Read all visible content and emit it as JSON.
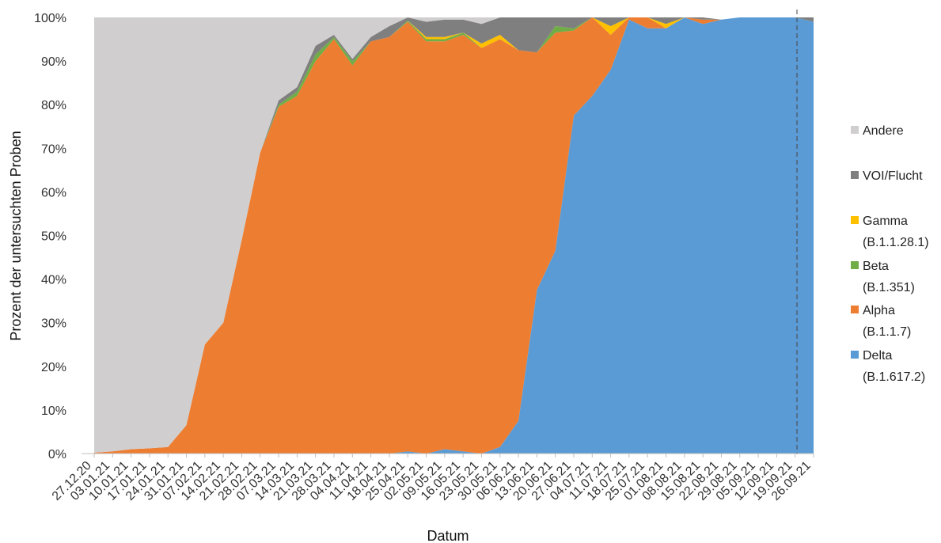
{
  "chart_data": {
    "type": "area",
    "stacked": true,
    "percent": true,
    "xlabel": "Datum",
    "ylabel": "Prozent der untersuchten Proben",
    "ylim": [
      0,
      100
    ],
    "y_ticks": [
      "0%",
      "10%",
      "20%",
      "30%",
      "40%",
      "50%",
      "60%",
      "70%",
      "80%",
      "90%",
      "100%"
    ],
    "grid": false,
    "legend_position": "right",
    "categories": [
      "27.12.20",
      "03.01.21",
      "10.01.21",
      "17.01.21",
      "24.01.21",
      "31.01.21",
      "07.02.21",
      "14.02.21",
      "21.02.21",
      "28.02.21",
      "07.03.21",
      "14.03.21",
      "21.03.21",
      "28.03.21",
      "04.04.21",
      "11.04.21",
      "18.04.21",
      "25.04.21",
      "02.05.21",
      "09.05.21",
      "16.05.21",
      "23.05.21",
      "30.05.21",
      "06.06.21",
      "13.06.21",
      "20.06.21",
      "27.06.21",
      "04.07.21",
      "11.07.21",
      "18.07.21",
      "25.07.21",
      "01.08.21",
      "08.08.21",
      "15.08.21",
      "22.08.21",
      "29.08.21",
      "05.09.21",
      "12.09.21",
      "19.09.21",
      "26.09.21"
    ],
    "reference_line_after": "19.09.21",
    "series": [
      {
        "name": "Delta (B.1.617.2)",
        "color": "#5B9BD5",
        "values": [
          0,
          0,
          0,
          0,
          0,
          0,
          0,
          0,
          0,
          0,
          0,
          0,
          0,
          0,
          0,
          0,
          0,
          0.5,
          0,
          1,
          0.5,
          0,
          1.5,
          7.5,
          37.5,
          46.5,
          77.5,
          82,
          88,
          99.5,
          97.5,
          97.5,
          100,
          98.5,
          99.5,
          100,
          100,
          100,
          100,
          99
        ]
      },
      {
        "name": "Alpha (B.1.1.7)",
        "color": "#ED7D31",
        "values": [
          0.2,
          0.5,
          1,
          1.2,
          1.5,
          6.5,
          25,
          30,
          49,
          69,
          79.5,
          82,
          90,
          95,
          89,
          94.5,
          95.5,
          98.5,
          94.5,
          93.5,
          95.5,
          93,
          93.5,
          85,
          54.5,
          50,
          19.5,
          18,
          8,
          0.5,
          2.5,
          0,
          0,
          1,
          0,
          0,
          0,
          0,
          0,
          0
        ]
      },
      {
        "name": "Beta (B.1.351)",
        "color": "#70AD47",
        "values": [
          0,
          0,
          0,
          0,
          0,
          0,
          0,
          0,
          0,
          0,
          0.5,
          1,
          1.5,
          0.5,
          1,
          0,
          0,
          0.3,
          0.5,
          0.5,
          0.5,
          0,
          0,
          0,
          0,
          1.5,
          0.5,
          0,
          0,
          0,
          0,
          0,
          0,
          0,
          0,
          0,
          0,
          0,
          0,
          0
        ]
      },
      {
        "name": "Gamma (B.1.1.28.1)",
        "color": "#FFC000",
        "values": [
          0,
          0,
          0,
          0,
          0,
          0,
          0,
          0,
          0,
          0,
          0,
          0,
          0,
          0,
          0,
          0,
          0,
          0,
          0.5,
          0.5,
          0,
          1,
          1,
          0,
          0,
          0,
          0,
          0,
          2,
          0,
          0,
          1,
          0,
          0,
          0,
          0,
          0,
          0,
          0,
          0
        ]
      },
      {
        "name": "VOI/Flucht",
        "color": "#7F7F7F",
        "values": [
          0,
          0,
          0,
          0,
          0,
          0,
          0,
          0,
          0,
          0,
          1,
          1,
          2,
          0.5,
          0.5,
          1,
          2.5,
          0.7,
          3.5,
          4,
          3,
          4.5,
          4,
          7.5,
          8,
          2,
          2.5,
          0,
          2,
          0,
          0,
          1.5,
          0,
          0.5,
          0,
          0,
          0,
          0,
          0,
          1
        ]
      },
      {
        "name": "Andere",
        "color": "#D0CECE",
        "values": [
          99.8,
          99.5,
          99,
          98.8,
          98.5,
          93.5,
          75,
          70,
          51,
          31,
          19,
          16,
          6.5,
          4,
          9.5,
          4.5,
          2,
          0,
          1,
          0.5,
          0.5,
          1.5,
          0,
          0,
          0,
          0,
          0,
          0,
          0,
          0,
          0,
          0,
          0,
          0,
          0,
          0,
          0,
          0,
          0,
          0
        ]
      }
    ]
  },
  "legend": [
    {
      "label": "Andere",
      "color": "#D0CECE"
    },
    {
      "label": "VOI/Flucht",
      "color": "#7F7F7F"
    },
    {
      "label": "Gamma",
      "sublabel": "(B.1.1.28.1)",
      "color": "#FFC000"
    },
    {
      "label": "Beta",
      "sublabel": "(B.1.351)",
      "color": "#70AD47"
    },
    {
      "label": "Alpha",
      "sublabel": "(B.1.1.7)",
      "color": "#ED7D31"
    },
    {
      "label": "Delta",
      "sublabel": "(B.1.617.2)",
      "color": "#5B9BD5"
    }
  ]
}
